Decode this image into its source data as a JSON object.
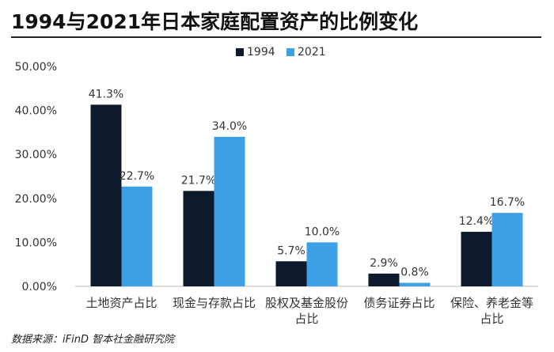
{
  "chart_data": {
    "type": "bar",
    "title": "1994与2021年日本家庭配置资产的比例变化",
    "categories": [
      [
        "土地资产占比"
      ],
      [
        "现金与存款占比"
      ],
      [
        "股权及基金股份",
        "占比"
      ],
      [
        "债务证券占比"
      ],
      [
        "保险、养老金等",
        "占比"
      ]
    ],
    "series": [
      {
        "name": "1994",
        "values": [
          41.3,
          21.7,
          5.7,
          2.9,
          12.4
        ],
        "labels": [
          "41.3%",
          "21.7%",
          "5.7%",
          "2.9%",
          "12.4%"
        ],
        "color": "#0d1a2c"
      },
      {
        "name": "2021",
        "values": [
          22.7,
          34.0,
          10.0,
          0.8,
          16.7
        ],
        "labels": [
          "22.7%",
          "34.0%",
          "10.0%",
          "0.8%",
          "16.7%"
        ],
        "color": "#3d9fe6"
      }
    ],
    "yticks": [
      "0.00%",
      "10.00%",
      "20.00%",
      "30.00%",
      "40.00%",
      "50.00%"
    ],
    "ylim": [
      0,
      50
    ],
    "grid": false,
    "legend": "top-center"
  },
  "source": "数据来源：iFinD 智本社金融研究院"
}
